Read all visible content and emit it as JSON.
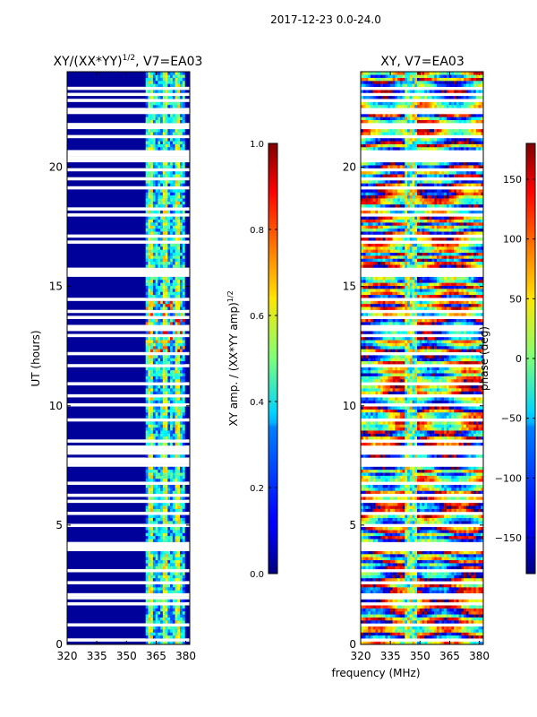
{
  "suptitle": "2017-12-23 0.0-24.0",
  "chart_data": [
    {
      "type": "heatmap",
      "title_main": "XY/(XX*YY)",
      "title_sup": "1/2",
      "title_tail": ", V7=EA03",
      "ylabel": "UT (hours)",
      "xlabel": "",
      "xlim": [
        320,
        382
      ],
      "ylim": [
        0,
        24
      ],
      "xticks": [
        "320",
        "335",
        "350",
        "365",
        "380"
      ],
      "xtick_values": [
        320,
        335,
        350,
        365,
        380
      ],
      "yticks": [
        "0",
        "5",
        "10",
        "15",
        "20"
      ],
      "ytick_values": [
        0,
        5,
        10,
        15,
        20
      ],
      "colorbar": {
        "label_main": "XY amp. / (XX*YY amp)",
        "label_sup": "1/2",
        "range": [
          0.0,
          1.0
        ],
        "ticks": [
          "0.0",
          "0.2",
          "0.4",
          "0.6",
          "0.8",
          "1.0"
        ],
        "tick_values": [
          0.0,
          0.2,
          0.4,
          0.6,
          0.8,
          1.0
        ]
      }
    },
    {
      "type": "heatmap",
      "title_main": "XY, V7=EA03",
      "ylabel": "",
      "xlabel": "frequency (MHz)",
      "xlim": [
        320,
        382
      ],
      "ylim": [
        0,
        24
      ],
      "xticks": [
        "320",
        "335",
        "350",
        "365",
        "380"
      ],
      "xtick_values": [
        320,
        335,
        350,
        365,
        380
      ],
      "yticks": [
        "0",
        "5",
        "10",
        "15",
        "20"
      ],
      "ytick_values": [
        0,
        5,
        10,
        15,
        20
      ],
      "colorbar": {
        "label_main": "phase (deg)",
        "range": [
          -180,
          180
        ],
        "ticks": [
          "−150",
          "−100",
          "−50",
          "0",
          "50",
          "100",
          "150"
        ],
        "tick_values": [
          -150,
          -100,
          -50,
          0,
          50,
          100,
          150
        ]
      }
    }
  ],
  "colors": {
    "jet_low": "#00007f",
    "jet_high": "#7f0000",
    "background": "#ffffff"
  }
}
